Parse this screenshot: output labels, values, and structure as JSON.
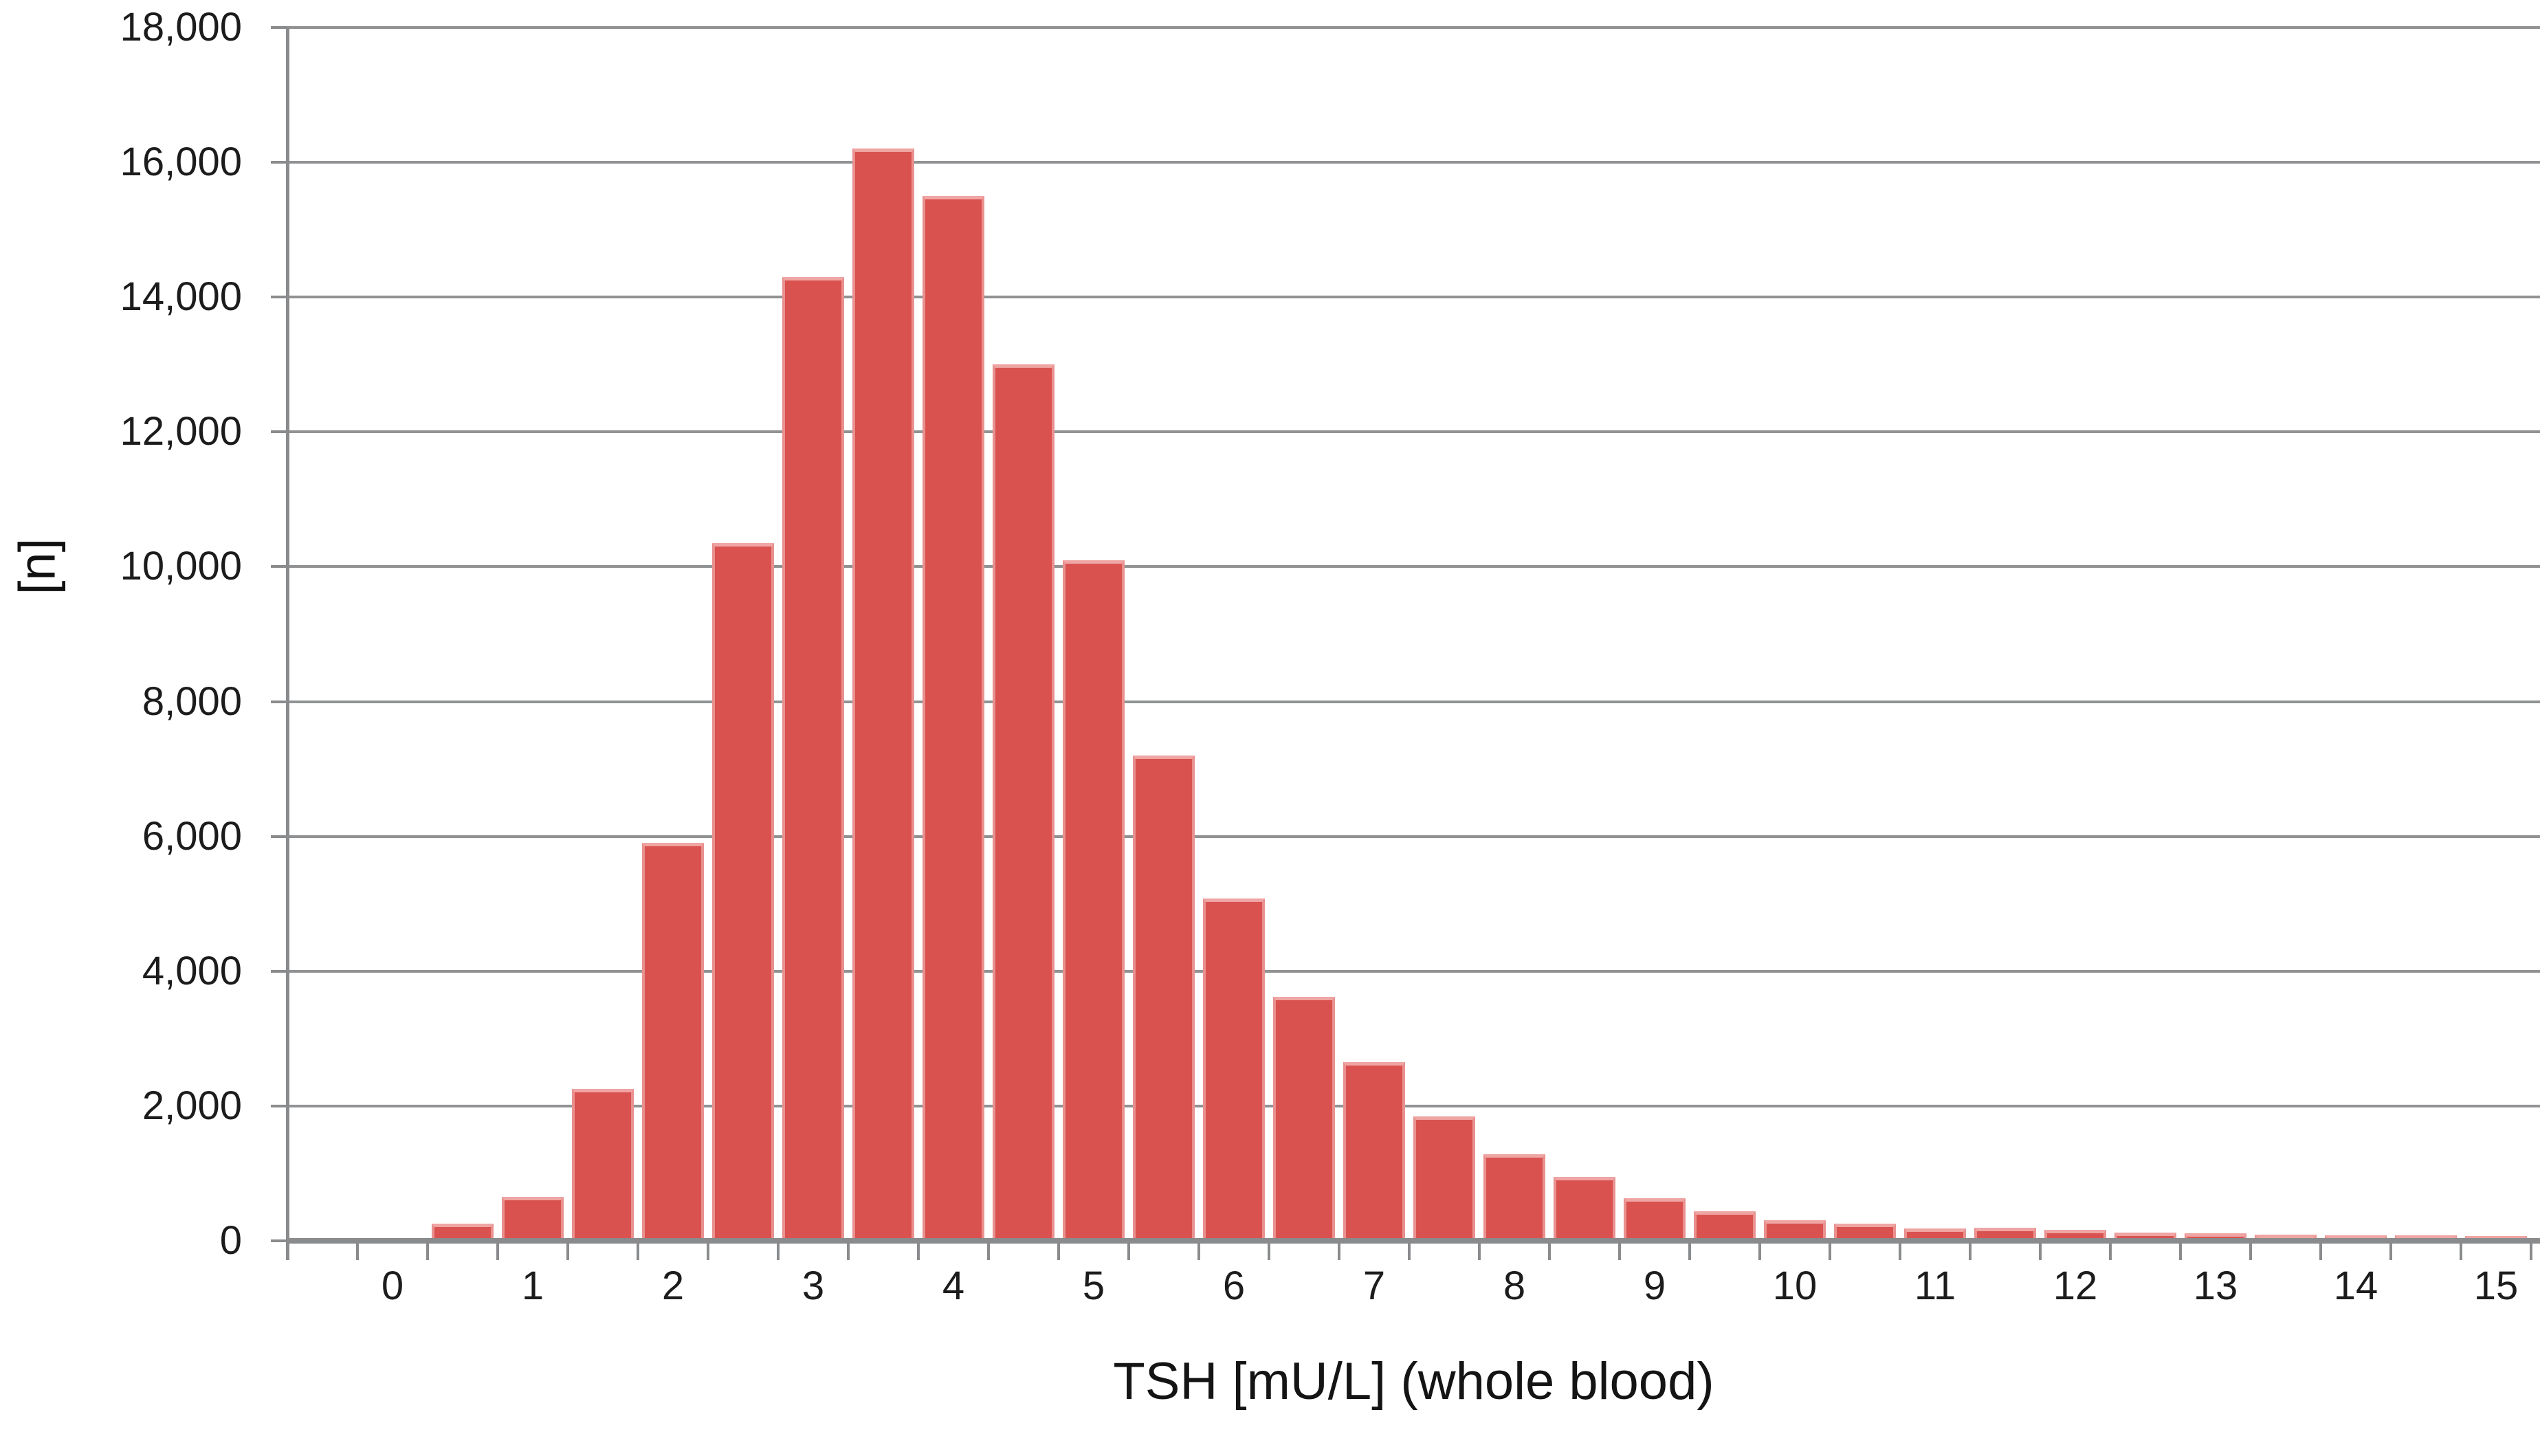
{
  "figure": {
    "title": "TSH [mU/L] (whole blood)",
    "y_axis_title": "[n]"
  },
  "chart_data": {
    "type": "bar",
    "title": "TSH [mU/L] (whole blood)",
    "xlabel": "TSH [mU/L] (whole blood)",
    "ylabel": "[n]",
    "bin_width": 0.5,
    "x_bin_centers": [
      0.5,
      1.0,
      1.5,
      2.0,
      2.5,
      3.0,
      3.5,
      4.0,
      4.5,
      5.0,
      5.5,
      6.0,
      6.5,
      7.0,
      7.5,
      8.0,
      8.5,
      9.0,
      9.5,
      10.0,
      10.5,
      11.0,
      11.5,
      12.0,
      12.5,
      13.0,
      13.5,
      14.0,
      14.5,
      15.0
    ],
    "values": [
      250,
      650,
      2250,
      5900,
      10350,
      14300,
      16200,
      15500,
      13000,
      10100,
      7200,
      5080,
      3620,
      2650,
      1850,
      1290,
      950,
      630,
      440,
      310,
      260,
      180,
      190,
      160,
      125,
      115,
      90,
      85,
      80,
      75
    ],
    "ylim": [
      0,
      18000
    ],
    "ytick_step": 2000,
    "y_tick_labels": [
      "0",
      "2,000",
      "4,000",
      "6,000",
      "8,000",
      "10,000",
      "12,000",
      "14,000",
      "16,000",
      "18,000"
    ],
    "x_tick_labels": [
      "0",
      "1",
      "2",
      "3",
      "4",
      "5",
      "6",
      "7",
      "8",
      "9",
      "10",
      "11",
      "12",
      "13",
      "14",
      "15"
    ],
    "x_axis_range": [
      -0.75,
      15.31
    ],
    "grid": true,
    "legend": null,
    "colors": {
      "bar": "#d95250",
      "bar_edge_highlight": "#efa5a3",
      "gridline": "#909294",
      "axis": "#898b8d",
      "text": "#1c1c1c",
      "background": "#ffffff"
    }
  }
}
